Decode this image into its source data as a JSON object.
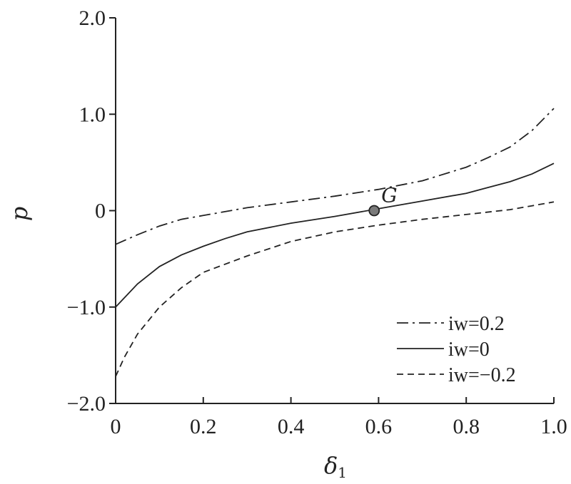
{
  "chart_data": {
    "type": "line",
    "xlabel": "δ",
    "xlabel_sub": "1",
    "ylabel": "p",
    "xlim": [
      0,
      1.0
    ],
    "ylim": [
      -2.0,
      2.0
    ],
    "xticks": [
      0,
      0.2,
      0.4,
      0.6,
      0.8,
      1.0
    ],
    "xtick_labels": [
      "0",
      "0.2",
      "0.4",
      "0.6",
      "0.8",
      "1.0"
    ],
    "yticks": [
      -2.0,
      -1.0,
      0,
      1.0,
      2.0
    ],
    "ytick_labels": [
      "−2.0",
      "−1.0",
      "0",
      "1.0",
      "2.0"
    ],
    "grid": false,
    "legend_position": "bottom-right",
    "series": [
      {
        "name": "iw=0.2",
        "dash": "dashdot",
        "x": [
          0,
          0.05,
          0.1,
          0.15,
          0.2,
          0.3,
          0.4,
          0.5,
          0.6,
          0.7,
          0.8,
          0.85,
          0.9,
          0.95,
          1.0
        ],
        "y": [
          -0.35,
          -0.25,
          -0.16,
          -0.09,
          -0.05,
          0.03,
          0.09,
          0.15,
          0.22,
          0.31,
          0.45,
          0.55,
          0.66,
          0.83,
          1.06
        ]
      },
      {
        "name": "iw=0",
        "dash": "solid",
        "x": [
          0,
          0.05,
          0.1,
          0.15,
          0.2,
          0.25,
          0.3,
          0.4,
          0.5,
          0.6,
          0.7,
          0.8,
          0.85,
          0.9,
          0.95,
          1.0
        ],
        "y": [
          -1.0,
          -0.76,
          -0.58,
          -0.46,
          -0.37,
          -0.29,
          -0.22,
          -0.13,
          -0.06,
          0.02,
          0.1,
          0.18,
          0.24,
          0.3,
          0.38,
          0.49
        ]
      },
      {
        "name": "iw=−0.2",
        "dash": "dashed",
        "x": [
          0,
          0.02,
          0.05,
          0.1,
          0.15,
          0.2,
          0.3,
          0.4,
          0.5,
          0.6,
          0.7,
          0.8,
          0.9,
          0.95,
          1.0
        ],
        "y": [
          -1.72,
          -1.52,
          -1.28,
          -1.0,
          -0.8,
          -0.64,
          -0.47,
          -0.32,
          -0.22,
          -0.15,
          -0.09,
          -0.04,
          0.01,
          0.05,
          0.09
        ]
      }
    ],
    "annotations": [
      {
        "label": "G",
        "x": 0.59,
        "y": 0.0
      }
    ]
  }
}
